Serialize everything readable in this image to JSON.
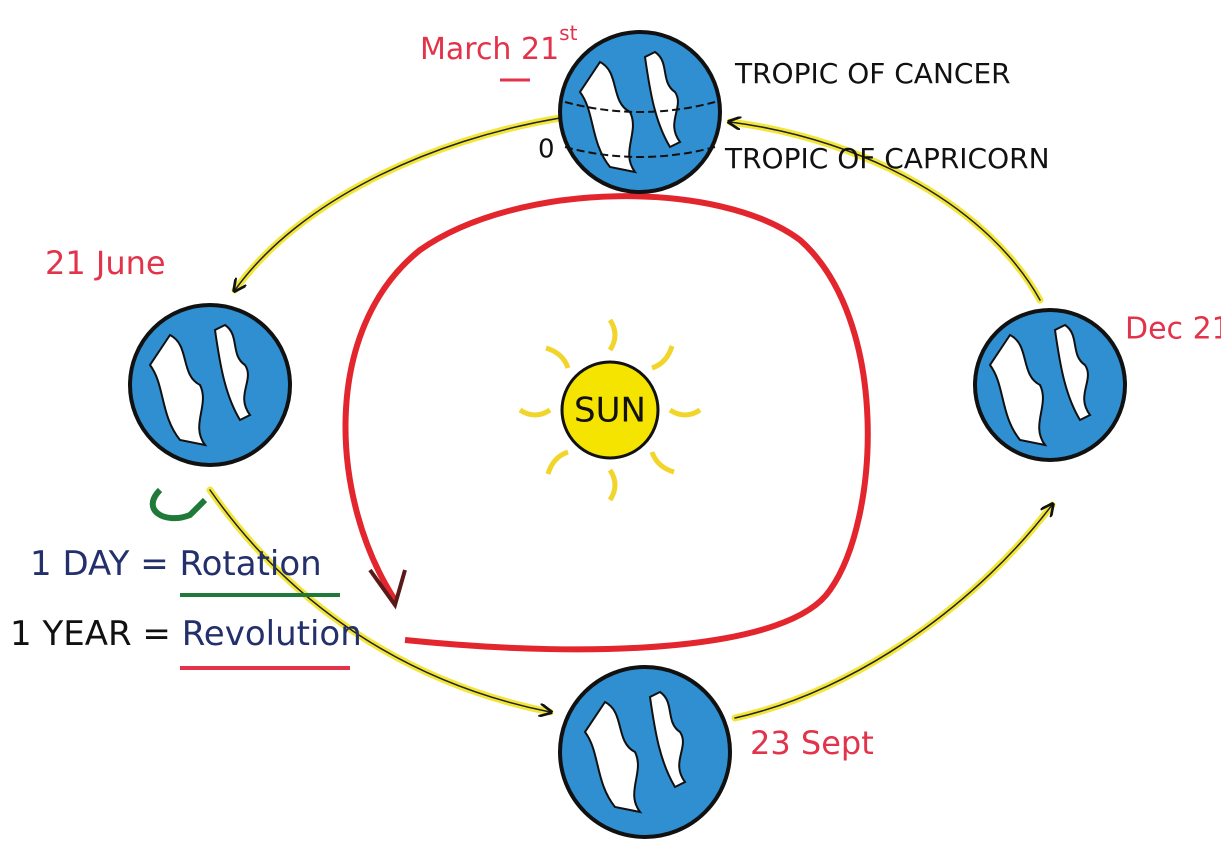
{
  "labels": {
    "march": {
      "date": "March 21",
      "suffix": "st"
    },
    "june": "21 June",
    "december": "Dec 21",
    "september": "23 Sept",
    "zero": "0",
    "tropic_cancer": "TROPIC OF CANCER",
    "tropic_capricorn": "TROPIC OF CAPRICORN",
    "sun": "SUN",
    "day": {
      "term": "1 DAY =",
      "meaning": "Rotation"
    },
    "year": {
      "term": "1 YEAR =",
      "meaning": "Revolution"
    }
  }
}
